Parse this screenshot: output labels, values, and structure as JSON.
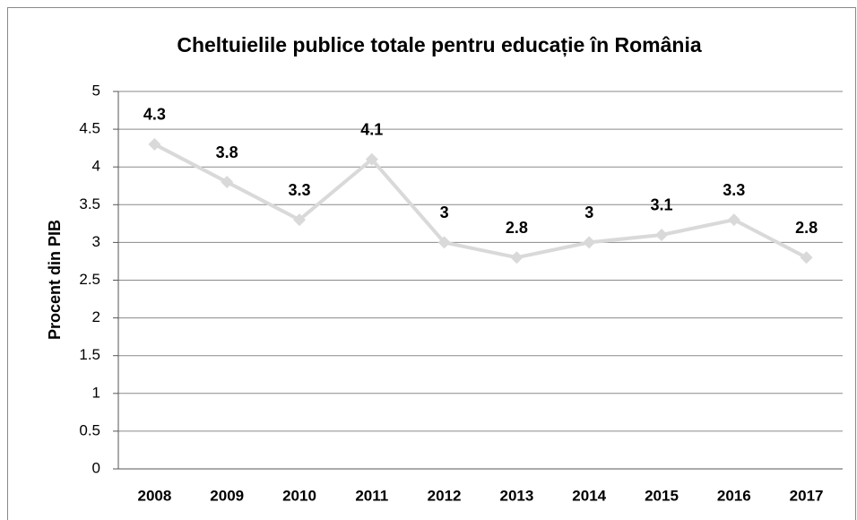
{
  "chart_data": {
    "type": "line",
    "title": "Cheltuielile publice totale pentru educație în România",
    "y_label": "Procent din PIB",
    "categories": [
      "2008",
      "2009",
      "2010",
      "2011",
      "2012",
      "2013",
      "2014",
      "2015",
      "2016",
      "2017"
    ],
    "values": [
      4.3,
      3.8,
      3.3,
      4.1,
      3,
      2.8,
      3,
      3.1,
      3.3,
      2.8
    ],
    "color": "#d9d9d9",
    "ylim": [
      0,
      5
    ],
    "yticks": [
      0,
      0.5,
      1,
      1.5,
      2,
      2.5,
      3,
      3.5,
      4,
      4.5,
      5
    ],
    "grid": true
  }
}
